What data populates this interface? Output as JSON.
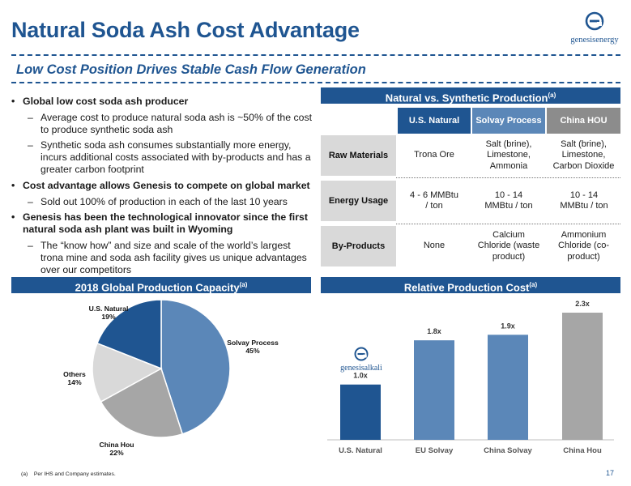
{
  "title": "Natural Soda Ash Cost Advantage",
  "logo_text": "genesisenergy",
  "subtitle": "Low Cost Position Drives Stable Cash Flow Generation",
  "bullets": [
    {
      "text": "Global low cost soda ash producer",
      "subs": [
        "Average cost to produce natural soda ash is ~50% of the cost to produce synthetic soda ash",
        "Synthetic soda ash consumes substantially more energy, incurs additional costs associated with by-products and has a greater carbon footprint"
      ]
    },
    {
      "text": "Cost advantage allows Genesis to compete on global market",
      "subs": [
        "Sold out 100% of production in each of the last 10 years"
      ]
    },
    {
      "text": "Genesis has been the technological innovator since the first natural soda ash plant was built in Wyoming",
      "subs": [
        "The “know how” and size and scale of the world’s largest trona mine and soda ash facility gives us unique advantages over our competitors"
      ]
    }
  ],
  "table": {
    "title": "Natural vs. Synthetic Production",
    "title_note": "(a)",
    "columns": [
      "U.S. Natural",
      "Solvay Process",
      "China HOU"
    ],
    "column_colors": [
      "#1f5591",
      "#5b87b8",
      "#8c8c8c"
    ],
    "rows": [
      {
        "label": "Raw Materials",
        "values": [
          "Trona Ore",
          "Salt (brine), Limestone, Ammonia",
          "Salt (brine), Limestone, Carbon Dioxide"
        ]
      },
      {
        "label": "Energy Usage",
        "values": [
          "4 - 6 MMBtu / ton",
          "10 - 14 MMBtu / ton",
          "10 - 14 MMBtu / ton"
        ]
      },
      {
        "label": "By-Products",
        "values": [
          "None",
          "Calcium Chloride (waste product)",
          "Ammonium Chloride (co-product)"
        ]
      }
    ]
  },
  "pie": {
    "title": "2018 Global Production Capacity",
    "title_note": "(a)",
    "chart_data": {
      "type": "pie",
      "slices": [
        {
          "name": "Solvay Process",
          "value": 45,
          "label": "45%",
          "color": "#5b87b8"
        },
        {
          "name": "China Hou",
          "value": 22,
          "label": "22%",
          "color": "#a6a6a6"
        },
        {
          "name": "Others",
          "value": 14,
          "label": "14%",
          "color": "#d9d9d9"
        },
        {
          "name": "U.S. Natural",
          "value": 19,
          "label": "19%",
          "color": "#1f5591"
        }
      ]
    }
  },
  "bar": {
    "title": "Relative Production Cost",
    "title_note": "(a)",
    "logo_text": "genesisalkali",
    "chart_data": {
      "type": "bar",
      "categories": [
        "U.S. Natural",
        "EU Solvay",
        "China Solvay",
        "China Hou"
      ],
      "values": [
        1.0,
        1.8,
        1.9,
        2.3
      ],
      "labels": [
        "1.0x",
        "1.8x",
        "1.9x",
        "2.3x"
      ],
      "colors": [
        "#1f5591",
        "#5b87b8",
        "#5b87b8",
        "#a6a6a6"
      ],
      "ylim": [
        0,
        2.3
      ]
    }
  },
  "footnote_mark": "(a)",
  "footnote_text": "Per IHS and Company estimates.",
  "page_number": "17"
}
